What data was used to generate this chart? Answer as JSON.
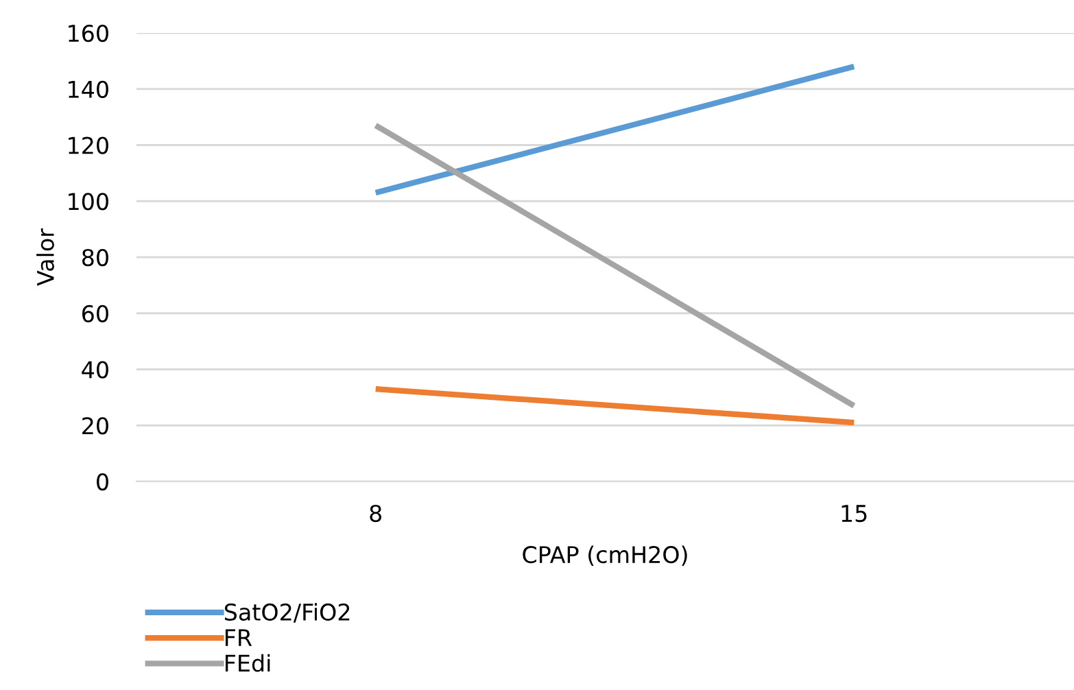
{
  "chart_data": {
    "type": "line",
    "xlabel": "CPAP (cmH2O)",
    "ylabel": "Valor",
    "categories": [
      "8",
      "15"
    ],
    "series": [
      {
        "name": "SatO2/FiO2",
        "color": "#5b9bd5",
        "values": [
          103,
          148
        ]
      },
      {
        "name": "FR",
        "color": "#ed7d31",
        "values": [
          33,
          21
        ]
      },
      {
        "name": "FEdi",
        "color": "#a5a5a5",
        "values": [
          127,
          27
        ]
      }
    ],
    "ylim": [
      0,
      160
    ],
    "yticks": [
      0,
      20,
      40,
      60,
      80,
      100,
      120,
      140,
      160
    ],
    "grid": "y",
    "legend": "bottom left",
    "marker": "none",
    "line_style": "solid"
  }
}
